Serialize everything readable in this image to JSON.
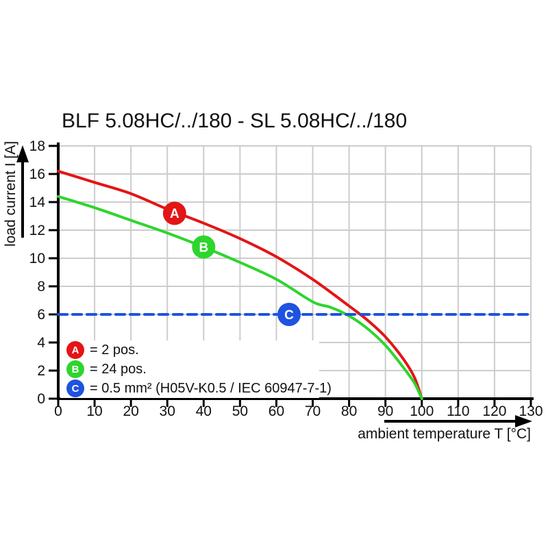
{
  "title": "BLF 5.08HC/../180 - SL 5.08HC/../180",
  "chart_data": {
    "type": "line",
    "title": "BLF 5.08HC/../180 - SL 5.08HC/../180",
    "xlabel": "ambient temperature T [°C]",
    "ylabel": "load current I [A]",
    "xlim": [
      0,
      130
    ],
    "ylim": [
      0,
      18
    ],
    "x_ticks": [
      0,
      10,
      20,
      30,
      40,
      50,
      60,
      70,
      80,
      90,
      100,
      110,
      120,
      130
    ],
    "y_ticks": [
      0,
      2,
      4,
      6,
      8,
      10,
      12,
      14,
      16,
      18
    ],
    "grid": true,
    "legend_position": "inside-bottom-left",
    "series": [
      {
        "id": "A",
        "legend": "= 2 pos.",
        "color": "#e31515",
        "line_style": "solid",
        "points": [
          [
            0,
            16.2
          ],
          [
            10,
            15.4
          ],
          [
            20,
            14.6
          ],
          [
            30,
            13.5
          ],
          [
            40,
            12.5
          ],
          [
            50,
            11.4
          ],
          [
            60,
            10.1
          ],
          [
            70,
            8.5
          ],
          [
            80,
            6.6
          ],
          [
            85,
            5.6
          ],
          [
            90,
            4.4
          ],
          [
            95,
            2.8
          ],
          [
            98,
            1.5
          ],
          [
            100,
            0
          ]
        ]
      },
      {
        "id": "B",
        "legend": "= 24 pos.",
        "color": "#2ed52e",
        "line_style": "solid",
        "points": [
          [
            0,
            14.4
          ],
          [
            10,
            13.6
          ],
          [
            20,
            12.7
          ],
          [
            30,
            11.8
          ],
          [
            40,
            10.8
          ],
          [
            50,
            9.7
          ],
          [
            60,
            8.5
          ],
          [
            70,
            6.9
          ],
          [
            75,
            6.5
          ],
          [
            80,
            5.9
          ],
          [
            85,
            5.0
          ],
          [
            90,
            3.8
          ],
          [
            95,
            2.2
          ],
          [
            98,
            1.1
          ],
          [
            100,
            0
          ]
        ]
      },
      {
        "id": "C",
        "legend": "= 0.5 mm² (H05V-K0.5 / IEC 60947-7-1)",
        "color": "#1f52e0",
        "line_style": "dashed",
        "points": [
          [
            0,
            6
          ],
          [
            130,
            6
          ]
        ]
      }
    ],
    "point_markers": [
      {
        "label": "A",
        "t": 32,
        "i": 13.2,
        "color": "#e31515"
      },
      {
        "label": "B",
        "t": 40,
        "i": 10.8,
        "color": "#2ed52e"
      },
      {
        "label": "C",
        "t": 63.5,
        "i": 6,
        "color": "#1f52e0"
      }
    ]
  },
  "legend": {
    "items": [
      {
        "letter": "A",
        "color": "#e31515",
        "label": "= 2 pos."
      },
      {
        "letter": "B",
        "color": "#2ed52e",
        "label": "= 24 pos."
      },
      {
        "letter": "C",
        "color": "#1f52e0",
        "label": "= 0.5 mm² (H05V-K0.5 / IEC 60947-7-1)"
      }
    ]
  },
  "colors": {
    "background": "#ffffff",
    "grid": "#cccccc",
    "axis": "#000000",
    "text": "#111111"
  }
}
